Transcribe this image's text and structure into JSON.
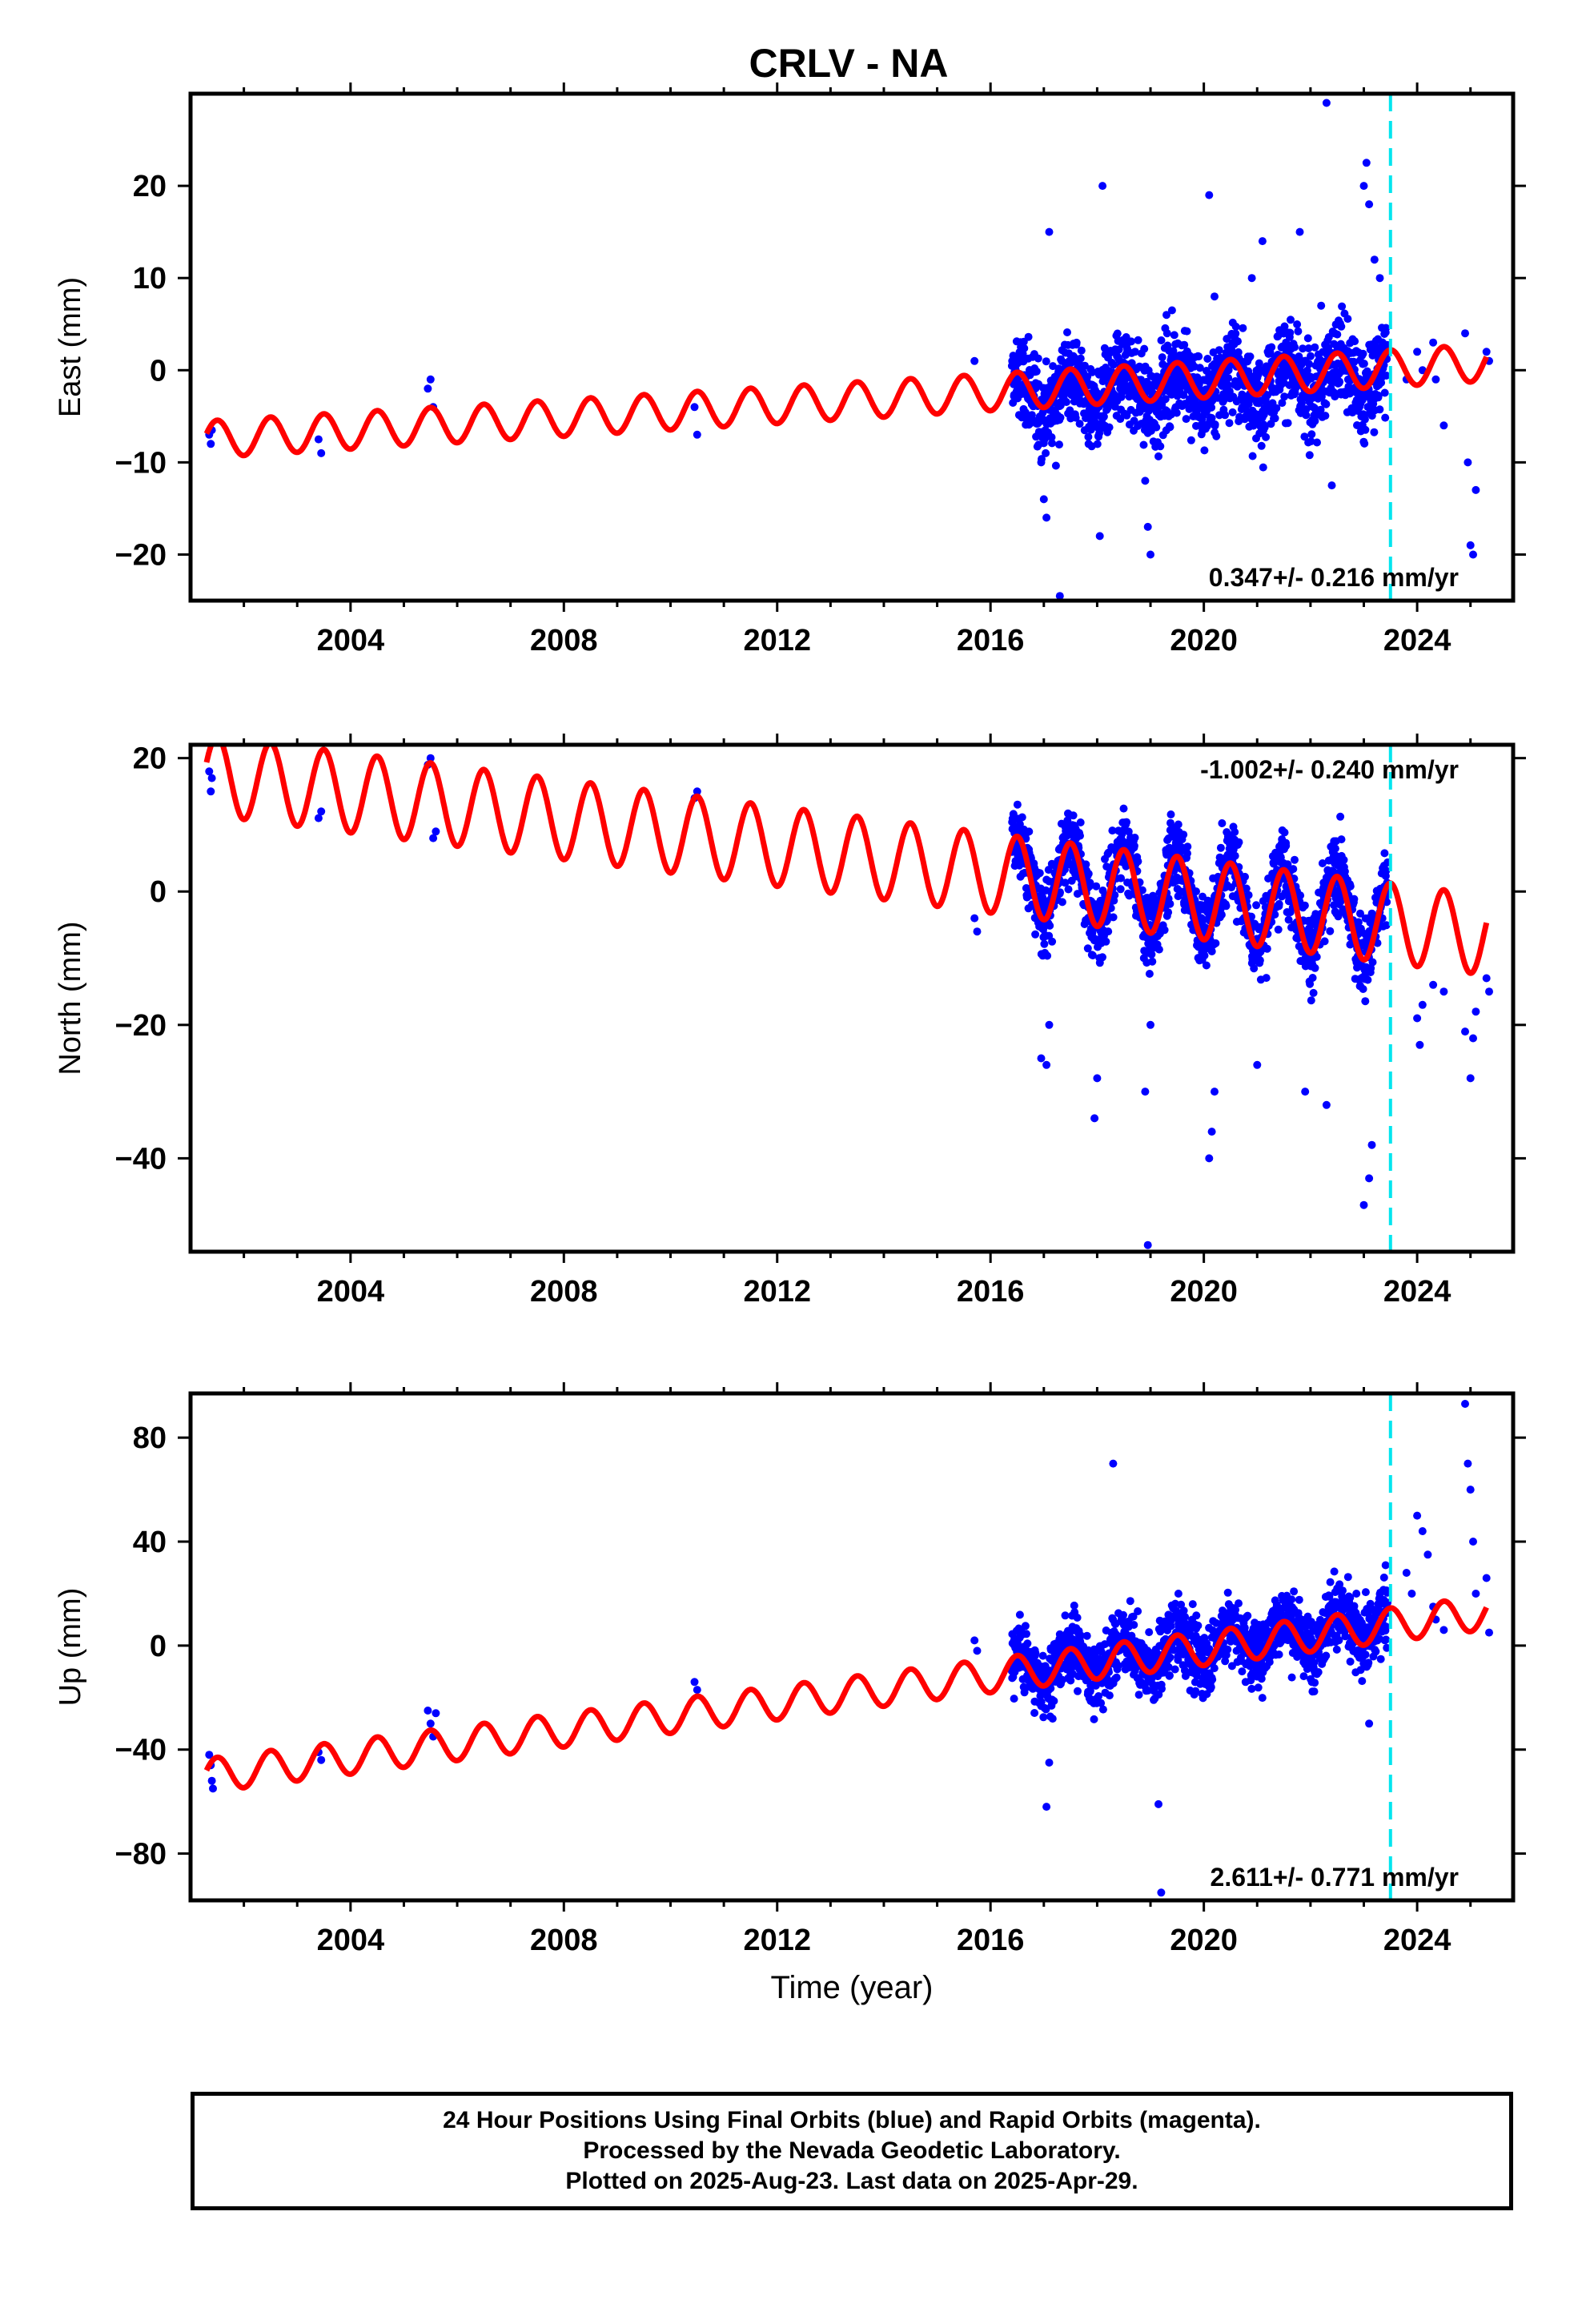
{
  "title": "CRLV - NA",
  "colors": {
    "observed": "#0000ff",
    "model": "#ff0000",
    "event_line": "#00e5ee",
    "frame": "#000000"
  },
  "chart_data": [
    {
      "type": "scatter",
      "ylabel": "East (mm)",
      "xlabel": "",
      "xlim": [
        2001.0,
        2025.8
      ],
      "ylim": [
        -25,
        30
      ],
      "xticks": [
        "2004",
        "2008",
        "2012",
        "2016",
        "2020",
        "2024"
      ],
      "yticks": [
        "20",
        "10",
        "0",
        "−10",
        "−20"
      ],
      "rate_label": "0.347+/- 0.216 mm/yr",
      "rate_position": "bottom-right",
      "event_line_x": 2023.5,
      "model": {
        "name": "",
        "offset": -7.5,
        "rate": 0.347,
        "annual_amplitude": 2.0,
        "start": 2001.3,
        "end": 2025.3
      },
      "series": [
        {
          "name": "",
          "x": [
            2001.35,
            2001.38,
            2001.4,
            2003.4,
            2003.45,
            2005.45,
            2005.5,
            2005.55,
            2010.45,
            2010.5,
            2015.7
          ],
          "y": [
            -7,
            -8,
            -6.5,
            -7.5,
            -9,
            -2,
            -1,
            -4,
            -4,
            -7,
            1
          ]
        },
        {
          "name": "",
          "cloud": true,
          "x_range": [
            2016.4,
            2023.45
          ],
          "center_offset": -0.5,
          "scatter": 3.5
        },
        {
          "name": "",
          "x": [
            2016.95,
            2017.0,
            2017.05,
            2017.1,
            2017.3,
            2017.9,
            2018.05,
            2018.1,
            2018.9,
            2018.95,
            2019.0,
            2019.3,
            2020.1,
            2020.2,
            2020.9,
            2021.1,
            2021.8,
            2022.2,
            2022.3,
            2022.4,
            2023.0,
            2023.05,
            2023.1,
            2023.2,
            2023.3
          ],
          "y": [
            -10,
            -14,
            -16,
            15,
            -24.5,
            -6,
            -18,
            20,
            -12,
            -17,
            -20,
            6,
            19,
            8,
            10,
            14,
            15,
            7,
            29,
            -12.5,
            20,
            22.5,
            18,
            12,
            10
          ]
        },
        {
          "name": "",
          "x": [
            2023.8,
            2024.0,
            2024.1,
            2024.3,
            2024.35,
            2024.5,
            2024.9,
            2024.95,
            2025.0,
            2025.05,
            2025.1,
            2025.3,
            2025.35
          ],
          "y": [
            -1,
            2,
            0,
            3,
            -1,
            -6,
            4,
            -10,
            -19,
            -20,
            -13,
            2,
            1
          ]
        }
      ]
    },
    {
      "type": "scatter",
      "ylabel": "North (mm)",
      "xlabel": "",
      "xlim": [
        2001.0,
        2025.8
      ],
      "ylim": [
        -54,
        22
      ],
      "xticks": [
        "2004",
        "2008",
        "2012",
        "2016",
        "2020",
        "2024"
      ],
      "yticks": [
        "20",
        "0",
        "−20",
        "−40"
      ],
      "rate_label": "-1.002+/- 0.240 mm/yr",
      "rate_position": "top-right",
      "event_line_x": 2023.5,
      "model": {
        "name": "",
        "offset": 17.5,
        "rate": -1.002,
        "annual_amplitude": 6.0,
        "start": 2001.3,
        "end": 2025.3
      },
      "series": [
        {
          "name": "",
          "x": [
            2001.35,
            2001.38,
            2001.4,
            2003.4,
            2003.45,
            2005.45,
            2005.5,
            2005.55,
            2005.6,
            2010.45,
            2010.5,
            2015.7,
            2015.75
          ],
          "y": [
            18,
            15,
            17,
            11,
            12,
            19,
            20,
            8,
            9,
            14,
            15,
            -4,
            -6
          ]
        },
        {
          "name": "",
          "cloud": true,
          "x_range": [
            2016.4,
            2023.45
          ],
          "center_offset": 0.5,
          "scatter": 4.0
        },
        {
          "name": "",
          "x": [
            2016.95,
            2017.05,
            2017.1,
            2017.95,
            2018.0,
            2018.9,
            2018.95,
            2019.0,
            2020.1,
            2020.15,
            2020.2,
            2021.0,
            2021.9,
            2022.3,
            2023.0,
            2023.1,
            2023.15
          ],
          "y": [
            -25,
            -26,
            -20,
            -34,
            -28,
            -30,
            -53,
            -20,
            -40,
            -36,
            -30,
            -26,
            -30,
            -32,
            -47,
            -43,
            -38
          ]
        },
        {
          "name": "",
          "x": [
            2024.0,
            2024.05,
            2024.1,
            2024.3,
            2024.5,
            2024.9,
            2025.0,
            2025.05,
            2025.1,
            2025.3,
            2025.35
          ],
          "y": [
            -19,
            -23,
            -17,
            -14,
            -15,
            -21,
            -28,
            -22,
            -18,
            -13,
            -15
          ]
        }
      ]
    },
    {
      "type": "scatter",
      "ylabel": "Up (mm)",
      "xlabel": "Time (year)",
      "xlim": [
        2001.0,
        2025.8
      ],
      "ylim": [
        -98,
        97
      ],
      "xticks": [
        "2004",
        "2008",
        "2012",
        "2016",
        "2020",
        "2024"
      ],
      "yticks": [
        "80",
        "40",
        "0",
        "−40",
        "−80"
      ],
      "rate_label": "2.611+/- 0.771 mm/yr",
      "rate_position": "bottom-right",
      "event_line_x": 2023.5,
      "model": {
        "name": "",
        "offset": -50,
        "rate": 2.611,
        "annual_amplitude": 6.5,
        "start": 2001.3,
        "end": 2025.3
      },
      "series": [
        {
          "name": "",
          "x": [
            2001.35,
            2001.38,
            2001.4,
            2001.42,
            2003.4,
            2003.45,
            2005.45,
            2005.5,
            2005.55,
            2005.6,
            2010.45,
            2010.5,
            2015.7,
            2015.75
          ],
          "y": [
            -42,
            -46,
            -52,
            -55,
            -41,
            -44,
            -25,
            -30,
            -35,
            -26,
            -14,
            -17,
            2,
            -2
          ]
        },
        {
          "name": "",
          "cloud": true,
          "x_range": [
            2016.4,
            2023.45
          ],
          "center_offset": 1.0,
          "scatter": 9.0
        },
        {
          "name": "",
          "x": [
            2017.05,
            2017.1,
            2018.3,
            2019.15,
            2019.2,
            2022.5,
            2023.1
          ],
          "y": [
            -62,
            -45,
            70,
            -61,
            -95,
            22,
            -30
          ]
        },
        {
          "name": "",
          "x": [
            2023.8,
            2023.9,
            2024.0,
            2024.1,
            2024.2,
            2024.3,
            2024.35,
            2024.5,
            2024.9,
            2024.95,
            2025.0,
            2025.05,
            2025.1,
            2025.3,
            2025.35
          ],
          "y": [
            28,
            20,
            50,
            44,
            35,
            15,
            10,
            6,
            93,
            70,
            60,
            40,
            20,
            26,
            5
          ]
        }
      ]
    }
  ],
  "footer": {
    "line1": "24 Hour Positions Using Final Orbits (blue) and Rapid Orbits (magenta).",
    "line2": "Processed by the Nevada Geodetic Laboratory.",
    "line3": "Plotted on 2025-Aug-23. Last data on 2025-Apr-29."
  }
}
